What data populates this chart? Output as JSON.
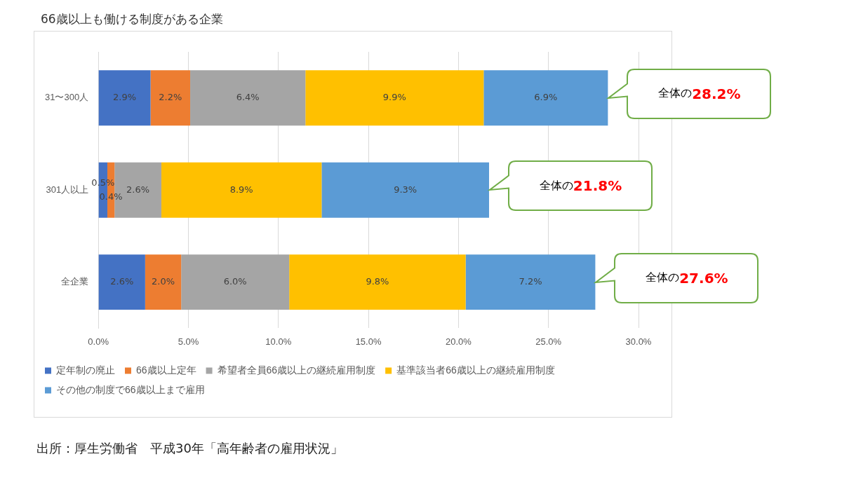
{
  "chart_data": {
    "type": "bar",
    "orientation": "horizontal",
    "stacked": true,
    "title": "66歳以上も働ける制度がある企業",
    "categories": [
      "31〜300人",
      "301人以上",
      "全企業"
    ],
    "series": [
      {
        "name": "定年制の廃止",
        "color": "#4472c4",
        "values": [
          2.9,
          0.5,
          2.6
        ],
        "value_labels": [
          "2.9%",
          "0.5%",
          "2.6%"
        ]
      },
      {
        "name": "66歳以上定年",
        "color": "#ed7d31",
        "values": [
          2.2,
          0.4,
          2.0
        ],
        "value_labels": [
          "2.2%",
          "0.4%",
          "2.0%"
        ]
      },
      {
        "name": "希望者全員66歳以上の継続雇用制度",
        "color": "#a5a5a5",
        "values": [
          6.4,
          2.6,
          6.0
        ],
        "value_labels": [
          "6.4%",
          "2.6%",
          "6.0%"
        ]
      },
      {
        "name": "基準該当者66歳以上の継続雇用制度",
        "color": "#ffc000",
        "values": [
          9.9,
          8.9,
          9.8
        ],
        "value_labels": [
          "9.9%",
          "8.9%",
          "9.8%"
        ]
      },
      {
        "name": "その他の制度で66歳以上まで雇用",
        "color": "#5b9bd5",
        "values": [
          6.9,
          9.3,
          7.2
        ],
        "value_labels": [
          "6.9%",
          "9.3%",
          "7.2%"
        ]
      }
    ],
    "xlim": [
      0,
      30
    ],
    "xticks": [
      {
        "value": 0,
        "label": "0.0%"
      },
      {
        "value": 5,
        "label": "5.0%"
      },
      {
        "value": 10,
        "label": "10.0%"
      },
      {
        "value": 15,
        "label": "15.0%"
      },
      {
        "value": 20,
        "label": "20.0%"
      },
      {
        "value": 25,
        "label": "25.0%"
      },
      {
        "value": 30,
        "label": "30.0%"
      }
    ],
    "grid": "x",
    "legend": "bottom",
    "annotations": [
      "全体の28.2%",
      "全体の21.8%",
      "全体の27.6%",
      "出所：厚生労働省　平成30年「高年齢者の雇用状況」"
    ]
  }
}
